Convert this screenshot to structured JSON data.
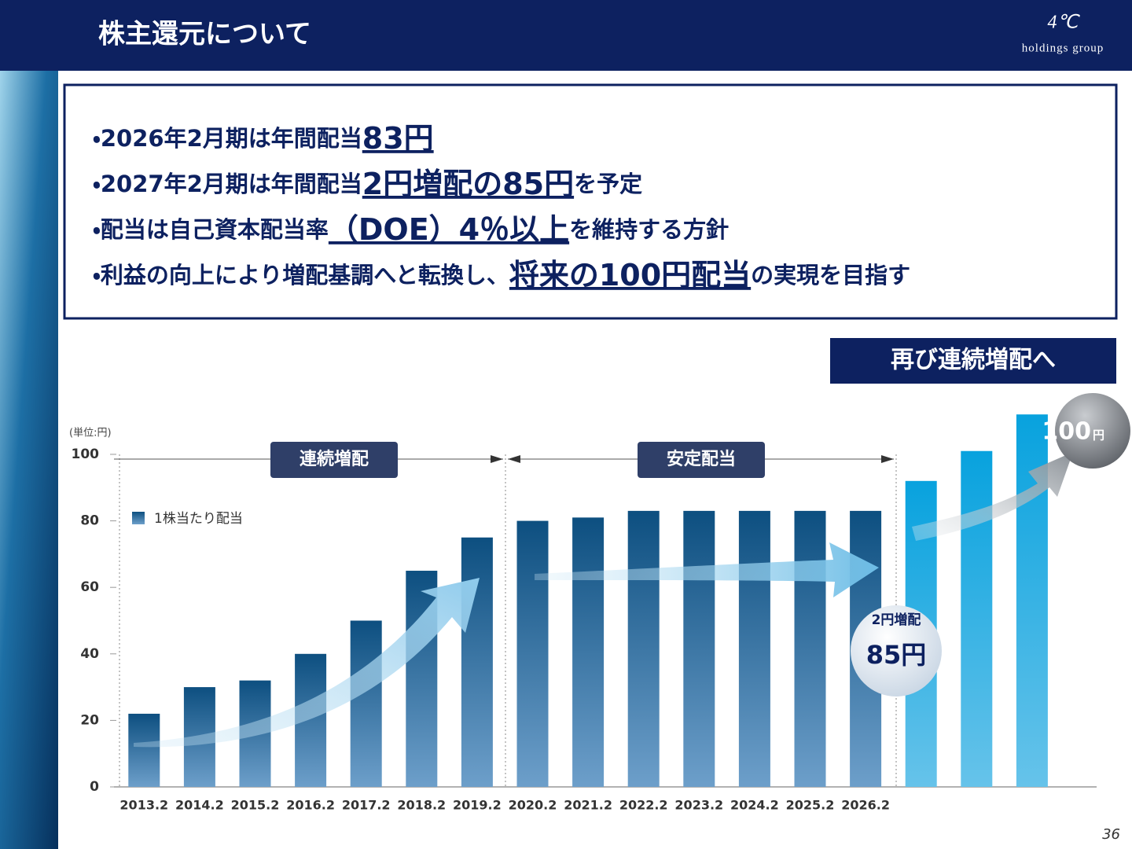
{
  "header": {
    "title": "株主還元について",
    "logo_mark": "4℃",
    "logo_text": "holdings group"
  },
  "bullets": [
    {
      "parts": [
        {
          "text": "・2026年2月期は年間配当",
          "emphasis": false
        },
        {
          "text": "83円",
          "emphasis": true
        }
      ]
    },
    {
      "parts": [
        {
          "text": "・2027年2月期は年間配当",
          "emphasis": false
        },
        {
          "text": "2円増配の85円",
          "emphasis": true
        },
        {
          "text": "を予定",
          "emphasis": false
        }
      ]
    },
    {
      "parts": [
        {
          "text": "・配当は自己資本配当率",
          "emphasis": false
        },
        {
          "text": "（DOE）4％以上",
          "emphasis": true
        },
        {
          "text": "を維持する方針",
          "emphasis": false
        }
      ]
    },
    {
      "parts": [
        {
          "text": "・利益の向上により増配基調へと転換し、",
          "emphasis": false
        },
        {
          "text": "将来の100円配当",
          "emphasis": true
        },
        {
          "text": "の実現を目指す",
          "emphasis": false
        }
      ]
    }
  ],
  "badge": "再び連続増配へ",
  "chart_data": {
    "type": "bar",
    "unit_label": "(単位:円)",
    "categories": [
      "2013.2",
      "2014.2",
      "2015.2",
      "2016.2",
      "2017.2",
      "2018.2",
      "2019.2",
      "2020.2",
      "2021.2",
      "2022.2",
      "2023.2",
      "2024.2",
      "2025.2",
      "2026.2",
      null,
      null,
      null
    ],
    "series": [
      {
        "name": "1株当たり配当",
        "color": "#0d4f80",
        "values": [
          22,
          30,
          32,
          40,
          50,
          65,
          75,
          80,
          81,
          83,
          83,
          83,
          83,
          83,
          92,
          101,
          112
        ]
      }
    ],
    "forecast_color": "#08a2de",
    "ylim": [
      0,
      112
    ],
    "yticks": [
      0,
      20,
      40,
      60,
      80,
      100
    ],
    "period_labels": [
      "連続増配",
      "安定配当"
    ]
  },
  "callouts": {
    "increase_label": "2円増配",
    "increase_value": "85円",
    "target_value": "100",
    "target_unit": "円"
  },
  "page_number": "36"
}
